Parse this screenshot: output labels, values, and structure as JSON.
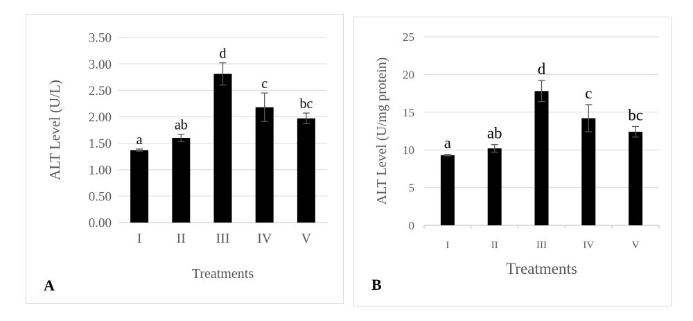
{
  "chart_data": [
    {
      "type": "bar",
      "panel_label": "A",
      "title": "",
      "xlabel": "Treatments",
      "ylabel": "ALT Level (U/L)",
      "categories": [
        "I",
        "II",
        "III",
        "IV",
        "V"
      ],
      "series": [
        {
          "values": [
            1.37,
            1.6,
            2.81,
            2.18,
            1.97
          ]
        }
      ],
      "error": [
        0.02,
        0.07,
        0.21,
        0.27,
        0.1
      ],
      "significance": [
        "a",
        "ab",
        "d",
        "c",
        "bc"
      ],
      "ylim": [
        0,
        3.5
      ],
      "yticks": [
        0,
        0.5,
        1,
        1.5,
        2,
        2.5,
        3,
        3.5
      ],
      "ytick_labels": [
        "0.00",
        "0.50",
        "1.00",
        "1.50",
        "2.00",
        "2.50",
        "3.00",
        "3.50"
      ],
      "grid": true,
      "legend": "none",
      "bar_color": "#000000"
    },
    {
      "type": "bar",
      "panel_label": "B",
      "title": "",
      "xlabel": "Treatments",
      "ylabel": "ALT Level (U/mg protein)",
      "categories": [
        "I",
        "II",
        "III",
        "IV",
        "V"
      ],
      "series": [
        {
          "values": [
            9.3,
            10.2,
            17.8,
            14.2,
            12.4
          ]
        }
      ],
      "error": [
        0.1,
        0.5,
        1.4,
        1.8,
        0.7
      ],
      "significance": [
        "a",
        "ab",
        "d",
        "c",
        "bc"
      ],
      "ylim": [
        0,
        25
      ],
      "yticks": [
        0,
        5,
        10,
        15,
        20,
        25
      ],
      "ytick_labels": [
        "0",
        "5",
        "10",
        "15",
        "20",
        "25"
      ],
      "grid": true,
      "legend": "none",
      "bar_color": "#000000"
    }
  ]
}
